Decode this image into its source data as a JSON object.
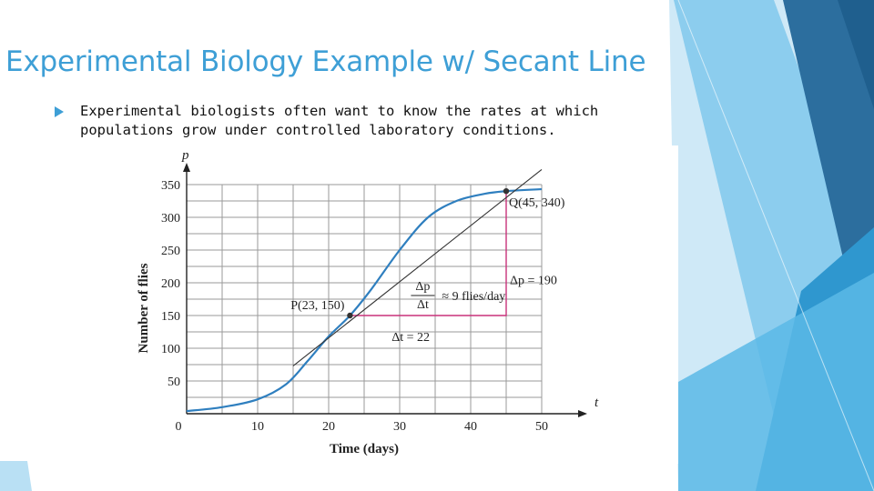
{
  "slide": {
    "title": "Experimental Biology Example w/ Secant Line",
    "bullets": [
      "Experimental biologists often want to know the rates at which populations grow under controlled laboratory conditions."
    ]
  },
  "theme": {
    "accent": "#3e9fd6",
    "curve": "#2f7fbf",
    "secant_legs": "#c8327a"
  },
  "chart_data": {
    "type": "line",
    "title": "",
    "xlabel": "Time (days)",
    "ylabel": "Number of flies",
    "x_axis_var": "t",
    "y_axis_var": "p",
    "xlim": [
      0,
      50
    ],
    "ylim": [
      0,
      350
    ],
    "xticks": [
      0,
      10,
      20,
      30,
      40,
      50
    ],
    "yticks": [
      50,
      100,
      150,
      200,
      250,
      300,
      350
    ],
    "grid": true,
    "series": [
      {
        "x": [
          0,
          5,
          10,
          14,
          17,
          20,
          23,
          26,
          30,
          34,
          38,
          42,
          45,
          50
        ],
        "y": [
          4,
          10,
          22,
          45,
          80,
          118,
          150,
          190,
          250,
          300,
          325,
          336,
          340,
          343
        ]
      },
      {
        "x": [
          15,
          50
        ],
        "y": [
          73,
          373
        ]
      }
    ],
    "points": [
      {
        "label": "P(23, 150)",
        "x": 23,
        "y": 150
      },
      {
        "label": "Q(45, 340)",
        "x": 45,
        "y": 340
      }
    ],
    "annotations": {
      "delta_t": "Δt = 22",
      "delta_p": "Δp = 190",
      "rate_num": "Δp",
      "rate_den": "Δt",
      "rate_value": "≈ 9 flies/day"
    }
  }
}
